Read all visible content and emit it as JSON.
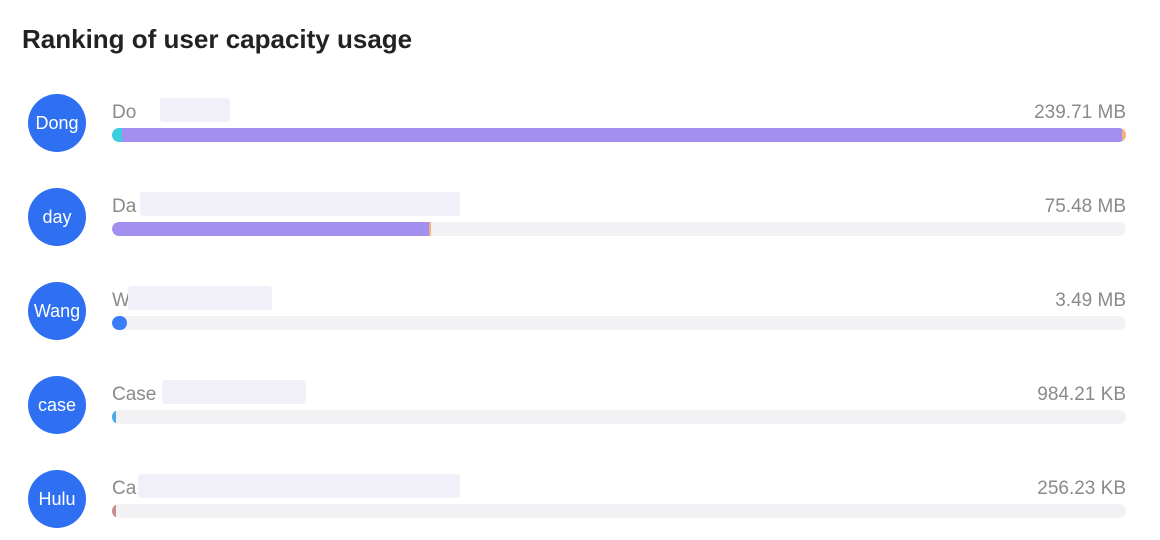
{
  "header": {
    "title": "Ranking of user capacity usage"
  },
  "users": {
    "avatars": [
      "Dong",
      "day",
      "Wang",
      "case",
      "Hulu"
    ],
    "names": [
      "Do",
      "Da",
      "W",
      "Case",
      "Ca"
    ],
    "values": [
      239.71,
      75.48,
      3.49,
      0.96114,
      0.25022
    ],
    "value_labels": [
      "239.71 MB",
      "75.48 MB",
      "3.49 MB",
      "984.21 KB",
      "256.23 KB"
    ],
    "colors": [
      "#a28ff0",
      "#a28ff0",
      "#3b7bf6",
      "#4aa8e8",
      "#c98a8a"
    ]
  }
}
